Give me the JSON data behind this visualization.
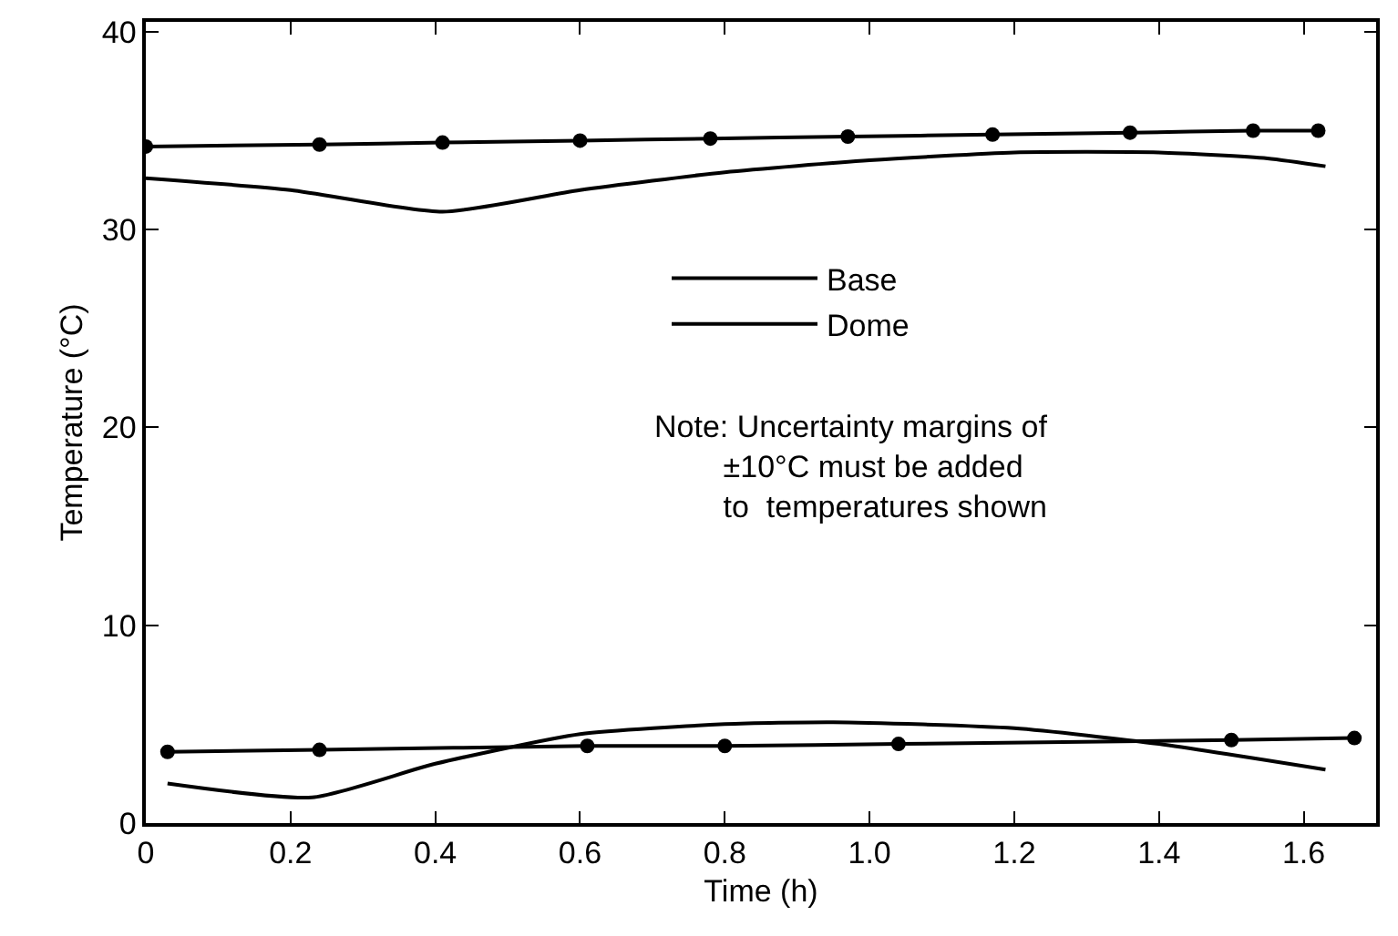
{
  "chart_data": {
    "type": "line",
    "xlabel": "Time (h)",
    "ylabel": "Temperature (°C)",
    "xlim": [
      0,
      1.7
    ],
    "xticks": [
      {
        "value": 0,
        "label": "0"
      },
      {
        "value": 0.2,
        "label": "0.2"
      },
      {
        "value": 0.4,
        "label": "0.4"
      },
      {
        "value": 0.6,
        "label": "0.6"
      },
      {
        "value": 0.8,
        "label": "0.8"
      },
      {
        "value": 1,
        "label": "1.0"
      },
      {
        "value": 1.2,
        "label": "1.2"
      },
      {
        "value": 1.4,
        "label": "1.4"
      },
      {
        "value": 1.6,
        "label": "1.6"
      }
    ],
    "ylim": [
      0,
      40.5
    ],
    "yticks": [
      0,
      10,
      20,
      30,
      40
    ],
    "grid": false,
    "legend": "center",
    "series": [
      {
        "name": "Base",
        "color": "#000000",
        "marker": "none",
        "x": [
          0,
          0.2,
          0.41,
          0.6,
          0.8,
          1.0,
          1.2,
          1.4,
          1.55,
          1.63
        ],
        "values": [
          32.6,
          32.0,
          30.9,
          32.0,
          32.9,
          33.5,
          33.9,
          33.9,
          33.6,
          33.2
        ]
      },
      {
        "name": "Dome",
        "color": "#000000",
        "marker": "circle",
        "x": [
          0.0,
          0.24,
          0.41,
          0.6,
          0.78,
          0.97,
          1.17,
          1.36,
          1.53,
          1.62
        ],
        "values": [
          34.2,
          34.3,
          34.4,
          34.5,
          34.6,
          34.7,
          34.8,
          34.9,
          35.0,
          35.0
        ]
      },
      {
        "color": "#000000",
        "marker": "none",
        "x": [
          0.03,
          0.23,
          0.4,
          0.6,
          0.8,
          0.95,
          1.2,
          1.4,
          1.63
        ],
        "values": [
          2.0,
          1.3,
          3.0,
          4.5,
          5.0,
          5.1,
          4.8,
          4.0,
          2.7
        ]
      },
      {
        "color": "#000000",
        "marker": "circle",
        "x": [
          0.03,
          0.24,
          0.61,
          0.8,
          1.04,
          1.5,
          1.67
        ],
        "values": [
          3.6,
          3.7,
          3.9,
          3.9,
          4.0,
          4.2,
          4.3
        ]
      }
    ],
    "annotations": [
      "Note: Uncertainty margins of\n        ±10°C must be added\n        to  temperatures shown"
    ]
  }
}
